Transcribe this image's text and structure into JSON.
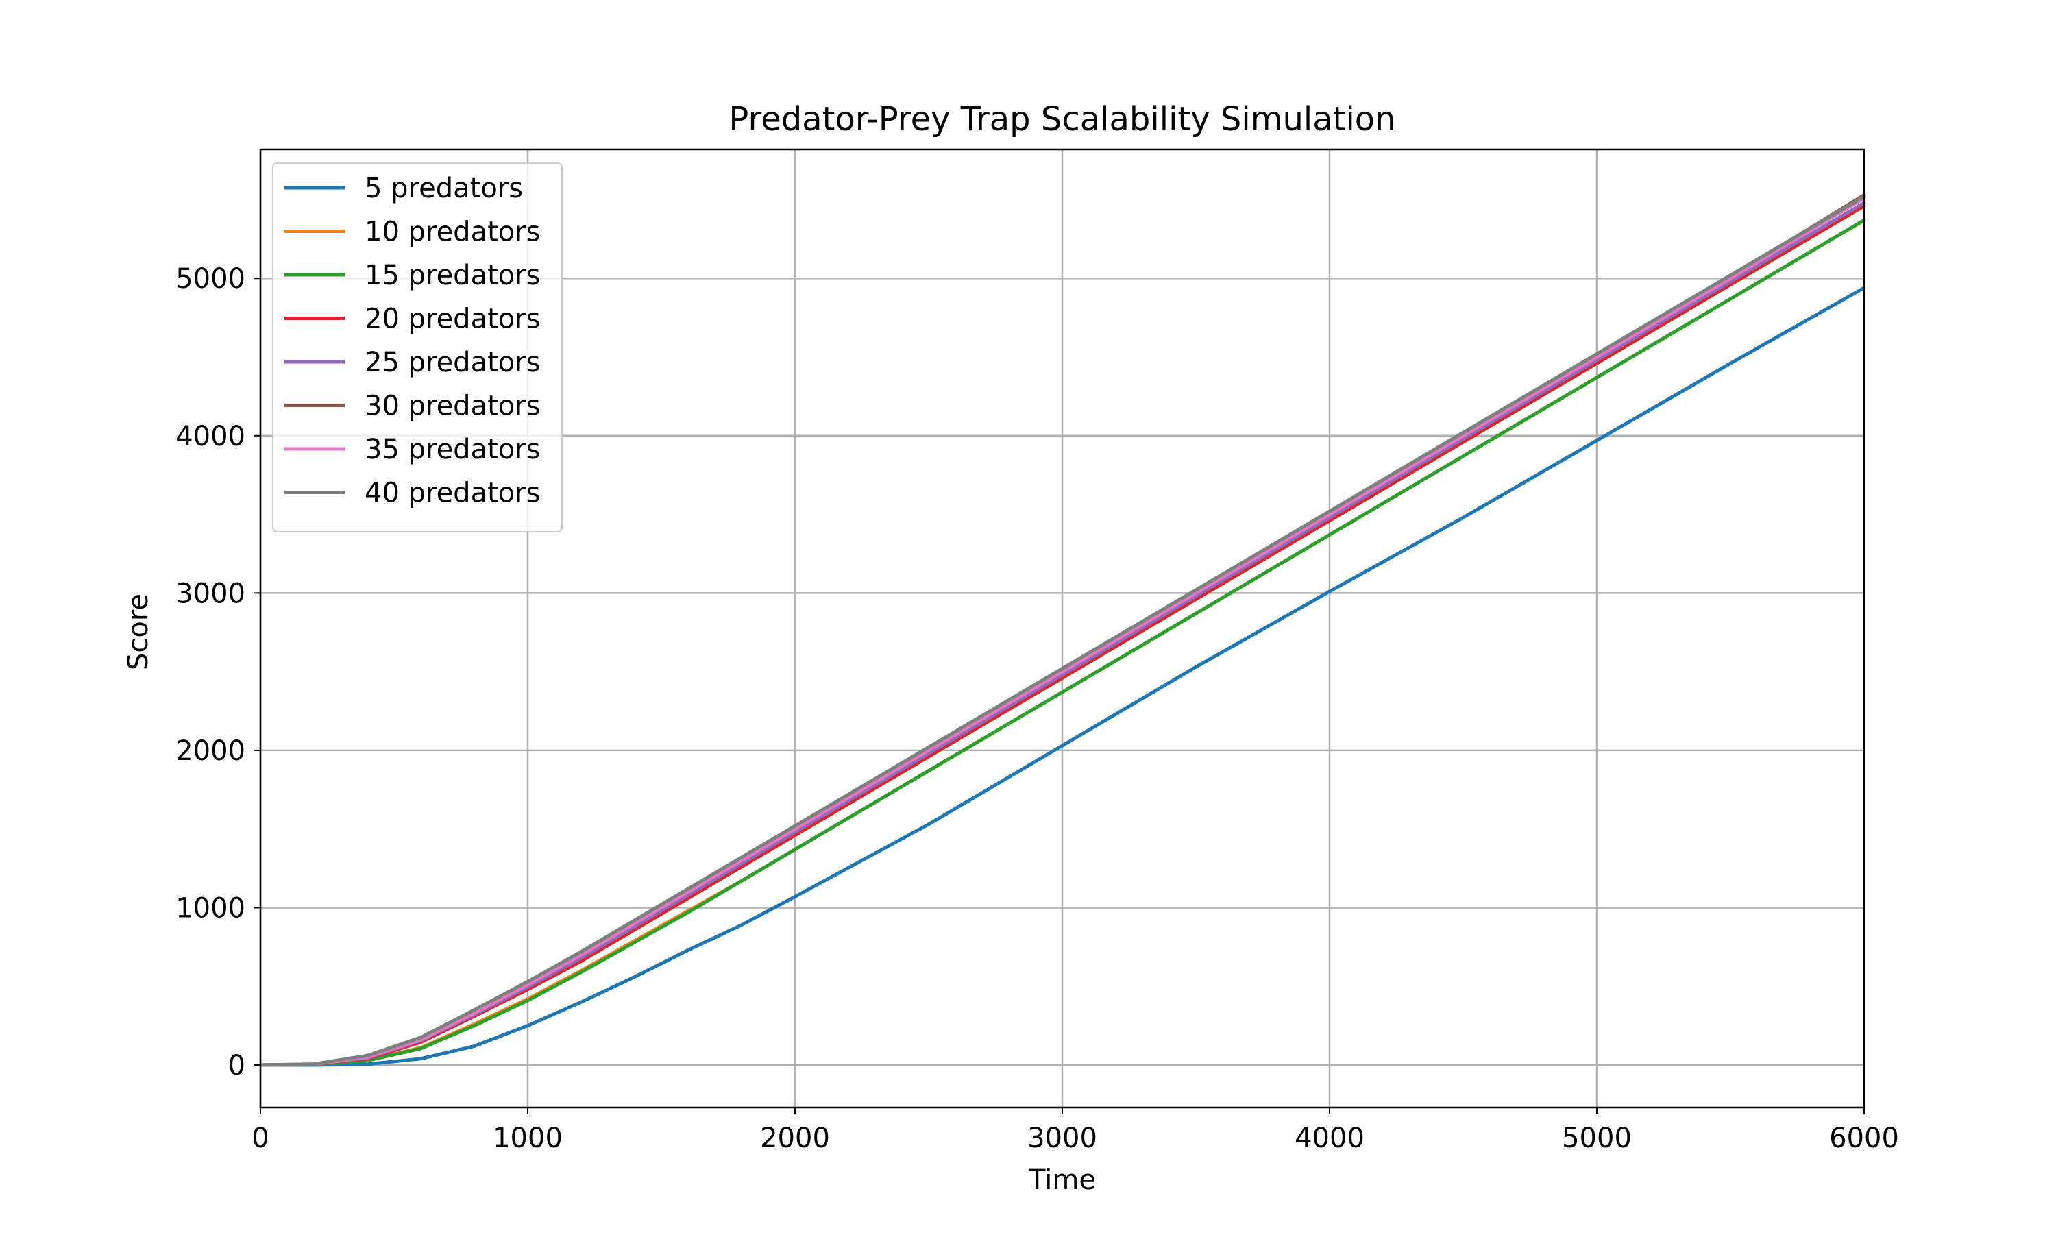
{
  "chart_data": {
    "type": "line",
    "title": "Predator-Prey Trap Scalability Simulation",
    "xlabel": "Time",
    "ylabel": "Score",
    "xlim": [
      0,
      6000
    ],
    "ylim": [
      -270,
      5820
    ],
    "xticks": [
      0,
      1000,
      2000,
      3000,
      4000,
      5000,
      6000
    ],
    "yticks": [
      0,
      1000,
      2000,
      3000,
      4000,
      5000
    ],
    "grid": true,
    "legend_position": "top-left",
    "x": [
      0,
      200,
      400,
      600,
      800,
      1000,
      1200,
      1400,
      1600,
      1800,
      2000,
      2500,
      3000,
      3500,
      4000,
      4500,
      5000,
      5500,
      6000
    ],
    "series": [
      {
        "name": "5 predators",
        "color": "#1f77b4",
        "values": [
          0,
          0,
          5,
          40,
          120,
          250,
          400,
          560,
          730,
          890,
          1070,
          1530,
          2030,
          2530,
          3010,
          3480,
          3970,
          4460,
          4940
        ]
      },
      {
        "name": "10 predators",
        "color": "#ff7f0e",
        "values": [
          0,
          3,
          30,
          110,
          260,
          420,
          600,
          790,
          980,
          1170,
          1370,
          1870,
          2370,
          2870,
          3370,
          3870,
          4370,
          4870,
          5370
        ]
      },
      {
        "name": "15 predators",
        "color": "#2ca02c",
        "values": [
          0,
          3,
          28,
          105,
          250,
          410,
          590,
          780,
          970,
          1170,
          1370,
          1870,
          2370,
          2870,
          3370,
          3870,
          4370,
          4870,
          5370
        ]
      },
      {
        "name": "20 predators",
        "color": "#d62728",
        "values": [
          0,
          4,
          40,
          145,
          310,
          480,
          660,
          860,
          1060,
          1260,
          1460,
          1960,
          2460,
          2960,
          3460,
          3960,
          4460,
          4960,
          5460
        ]
      },
      {
        "name": "25 predators",
        "color": "#9467bd",
        "values": [
          0,
          5,
          45,
          155,
          320,
          495,
          680,
          880,
          1080,
          1280,
          1480,
          1980,
          2480,
          2980,
          3480,
          3980,
          4480,
          4980,
          5480
        ]
      },
      {
        "name": "30 predators",
        "color": "#8c564b",
        "values": [
          0,
          5,
          50,
          165,
          340,
          520,
          710,
          910,
          1110,
          1310,
          1510,
          2010,
          2510,
          3010,
          3510,
          4010,
          4510,
          5010,
          5530
        ]
      },
      {
        "name": "35 predators",
        "color": "#e377c2",
        "values": [
          0,
          5,
          50,
          160,
          330,
          510,
          700,
          900,
          1100,
          1300,
          1500,
          2000,
          2500,
          3000,
          3500,
          4000,
          4500,
          5000,
          5510
        ]
      },
      {
        "name": "40 predators",
        "color": "#7f7f7f",
        "values": [
          0,
          6,
          60,
          175,
          350,
          530,
          720,
          920,
          1120,
          1320,
          1520,
          2020,
          2520,
          3020,
          3520,
          4020,
          4520,
          5020,
          5520
        ]
      }
    ]
  }
}
